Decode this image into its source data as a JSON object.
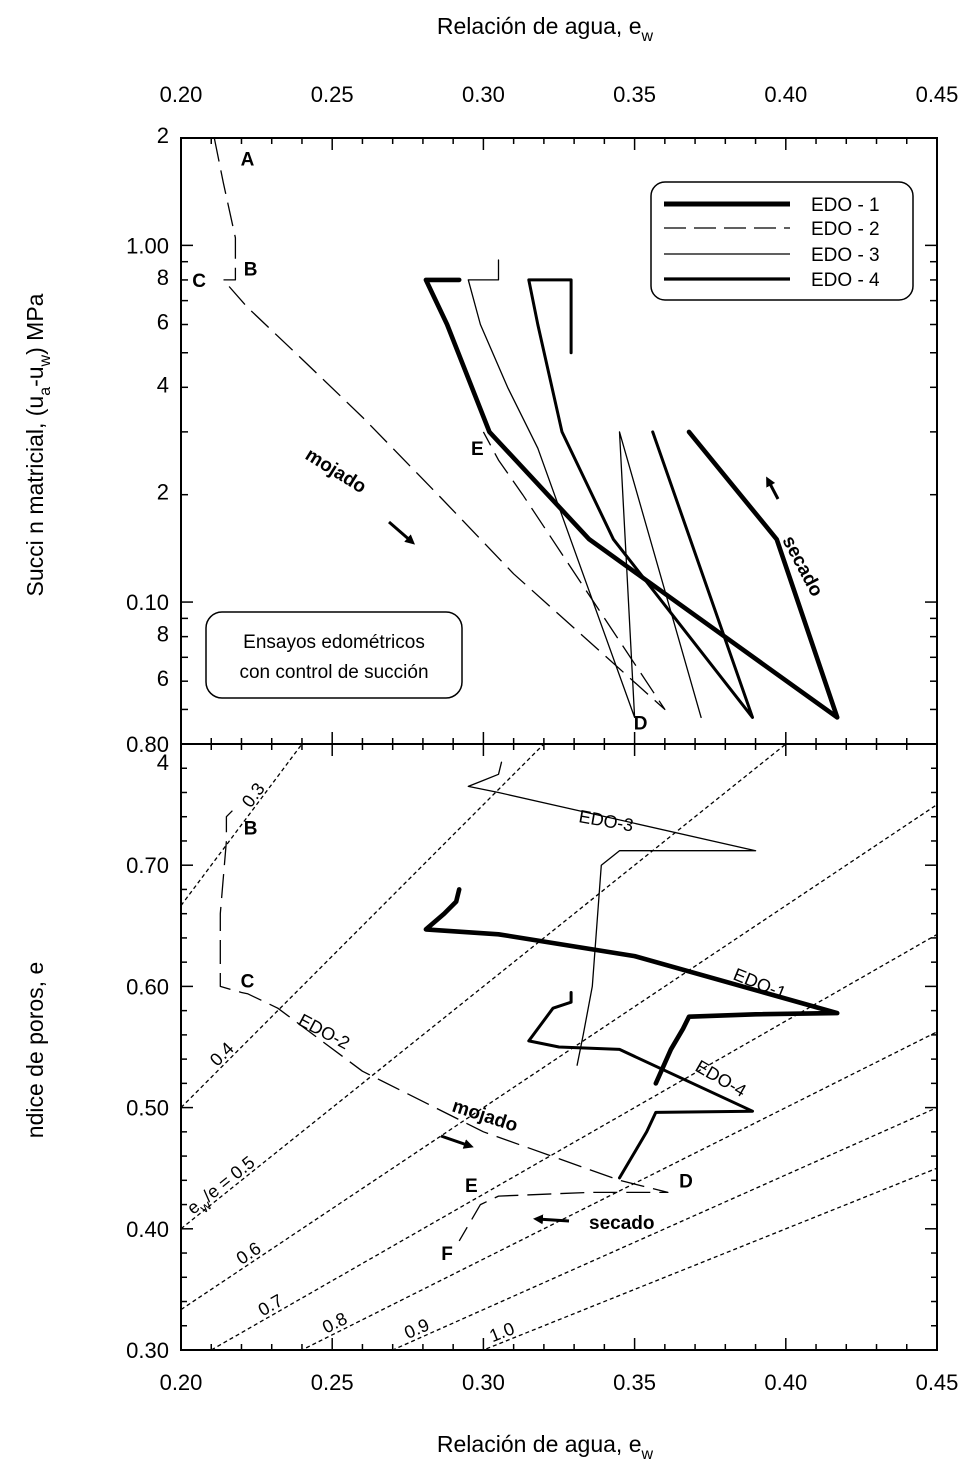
{
  "chart_data": [
    {
      "panel": "top",
      "type": "line",
      "xlabel": "Relación de agua,  e",
      "xlabel_sub": "w",
      "ylabel": "Succi  n matricial,  (u",
      "ylabel_sub_a": "a",
      "ylabel_mid": "-u",
      "ylabel_sub_w": "w",
      "ylabel_end": ")  MPa",
      "y_scale": "log",
      "xlim": [
        0.2,
        0.45
      ],
      "ylim": [
        0.04,
        2.0
      ],
      "x_ticks": [
        0.2,
        0.25,
        0.3,
        0.35,
        0.4,
        0.45
      ],
      "x_tick_labels": [
        "0.20",
        "0.25",
        "0.30",
        "0.35",
        "0.40",
        "0.45"
      ],
      "y_tick_labels": [
        {
          "v": 2.0,
          "t": "2"
        },
        {
          "v": 1.0,
          "t": "1.00"
        },
        {
          "v": 0.8,
          "t": "8"
        },
        {
          "v": 0.6,
          "t": "6"
        },
        {
          "v": 0.4,
          "t": "4"
        },
        {
          "v": 0.2,
          "t": "2"
        },
        {
          "v": 0.1,
          "t": "0.10"
        },
        {
          "v": 0.08,
          "t": "8"
        },
        {
          "v": 0.06,
          "t": "6"
        }
      ],
      "legend": {
        "placement": "top-right",
        "entries": [
          {
            "name": "EDO - 1",
            "style": "thick"
          },
          {
            "name": "EDO - 2",
            "style": "dashed"
          },
          {
            "name": "EDO - 3",
            "style": "thin"
          },
          {
            "name": "EDO - 4",
            "style": "medium"
          }
        ]
      },
      "note": [
        "Ensayos edométricos",
        "con control de succión"
      ],
      "series": [
        {
          "name": "EDO - 2",
          "style": "dashed",
          "points": [
            [
              0.211,
              2.0
            ],
            [
              0.214,
              1.5
            ],
            [
              0.218,
              1.05
            ],
            [
              0.218,
              0.8
            ],
            [
              0.214,
              0.8
            ],
            [
              0.222,
              0.67
            ],
            [
              0.24,
              0.48
            ],
            [
              0.26,
              0.33
            ],
            [
              0.285,
              0.2
            ],
            [
              0.31,
              0.12
            ],
            [
              0.36,
              0.05
            ],
            [
              0.313,
              0.2
            ],
            [
              0.305,
              0.25
            ],
            [
              0.3,
              0.3
            ]
          ]
        },
        {
          "name": "EDO - 3",
          "style": "thin",
          "points": [
            [
              0.305,
              0.91
            ],
            [
              0.305,
              0.8
            ],
            [
              0.295,
              0.8
            ],
            [
              0.299,
              0.6
            ],
            [
              0.308,
              0.4
            ],
            [
              0.318,
              0.27
            ],
            [
              0.35,
              0.0475
            ],
            [
              0.345,
              0.3
            ],
            [
              0.372,
              0.0475
            ]
          ]
        },
        {
          "name": "EDO - 1",
          "style": "thick",
          "points": [
            [
              0.292,
              0.8
            ],
            [
              0.281,
              0.8
            ],
            [
              0.288,
              0.6
            ],
            [
              0.302,
              0.3
            ],
            [
              0.335,
              0.15
            ],
            [
              0.417,
              0.0475
            ],
            [
              0.397,
              0.15
            ],
            [
              0.368,
              0.3
            ]
          ]
        },
        {
          "name": "EDO - 4",
          "style": "medium",
          "points": [
            [
              0.329,
              0.5
            ],
            [
              0.329,
              0.8
            ],
            [
              0.315,
              0.8
            ],
            [
              0.318,
              0.6
            ],
            [
              0.326,
              0.3
            ],
            [
              0.343,
              0.15
            ],
            [
              0.389,
              0.0475
            ],
            [
              0.356,
              0.3
            ]
          ]
        }
      ],
      "annotations": [
        {
          "text": "A",
          "x": 0.222,
          "y": 1.75
        },
        {
          "text": "B",
          "x": 0.223,
          "y": 0.86
        },
        {
          "text": "C",
          "x": 0.206,
          "y": 0.8
        },
        {
          "text": "D",
          "x": 0.352,
          "y": 0.046
        },
        {
          "text": "E",
          "x": 0.298,
          "y": 0.27
        },
        {
          "text": "mojado"
        },
        {
          "text": "secado"
        }
      ]
    },
    {
      "panel": "bottom",
      "type": "line",
      "xlabel": "Relación de agua,  e",
      "xlabel_sub": "w",
      "ylabel": "ndice de poros, e",
      "xlim": [
        0.2,
        0.45
      ],
      "ylim": [
        0.3,
        0.8
      ],
      "x_ticks": [
        0.2,
        0.25,
        0.3,
        0.35,
        0.4,
        0.45
      ],
      "x_tick_labels": [
        "0.20",
        "0.25",
        "0.30",
        "0.35",
        "0.40",
        "0.45"
      ],
      "y_ticks": [
        0.3,
        0.4,
        0.5,
        0.6,
        0.7,
        0.8
      ],
      "y_tick_labels": [
        "0.30",
        "0.40",
        "0.50",
        "0.60",
        "0.70",
        "0.80"
      ],
      "contour_lines": [
        {
          "ratio": 0.3,
          "label": "0.3"
        },
        {
          "ratio": 0.4,
          "label": "0.4"
        },
        {
          "ratio": 0.5,
          "label": "e",
          "label_sub": "w",
          "label_end": "/e = 0.5"
        },
        {
          "ratio": 0.6,
          "label": "0.6"
        },
        {
          "ratio": 0.7,
          "label": "0.7"
        },
        {
          "ratio": 0.8,
          "label": "0.8"
        },
        {
          "ratio": 0.9,
          "label": "0.9"
        },
        {
          "ratio": 1.0,
          "label": "1.0"
        }
      ],
      "series": [
        {
          "name": "EDO-2",
          "style": "dashed",
          "points": [
            [
              0.217,
              0.745
            ],
            [
              0.215,
              0.74
            ],
            [
              0.215,
              0.72
            ],
            [
              0.213,
              0.66
            ],
            [
              0.213,
              0.6
            ],
            [
              0.22,
              0.595
            ],
            [
              0.222,
              0.594
            ],
            [
              0.232,
              0.582
            ],
            [
              0.26,
              0.53
            ],
            [
              0.3,
              0.48
            ],
            [
              0.345,
              0.44
            ],
            [
              0.361,
              0.43
            ],
            [
              0.335,
              0.43
            ],
            [
              0.305,
              0.427
            ],
            [
              0.299,
              0.42
            ],
            [
              0.292,
              0.39
            ]
          ]
        },
        {
          "name": "EDO-3",
          "style": "thin",
          "points": [
            [
              0.306,
              0.785
            ],
            [
              0.305,
              0.775
            ],
            [
              0.3,
              0.77
            ],
            [
              0.295,
              0.765
            ],
            [
              0.305,
              0.76
            ],
            [
              0.39,
              0.712
            ],
            [
              0.345,
              0.712
            ],
            [
              0.339,
              0.7
            ],
            [
              0.336,
              0.6
            ],
            [
              0.333,
              0.56
            ],
            [
              0.331,
              0.535
            ]
          ]
        },
        {
          "name": "EDO-1",
          "style": "thick",
          "points": [
            [
              0.292,
              0.68
            ],
            [
              0.291,
              0.67
            ],
            [
              0.287,
              0.66
            ],
            [
              0.281,
              0.647
            ],
            [
              0.305,
              0.643
            ],
            [
              0.35,
              0.625
            ],
            [
              0.417,
              0.578
            ],
            [
              0.39,
              0.577
            ],
            [
              0.368,
              0.575
            ],
            [
              0.366,
              0.565
            ],
            [
              0.362,
              0.548
            ],
            [
              0.357,
              0.52
            ]
          ]
        },
        {
          "name": "EDO-4",
          "style": "medium",
          "points": [
            [
              0.329,
              0.595
            ],
            [
              0.329,
              0.587
            ],
            [
              0.323,
              0.582
            ],
            [
              0.315,
              0.555
            ],
            [
              0.325,
              0.55
            ],
            [
              0.345,
              0.548
            ],
            [
              0.389,
              0.497
            ],
            [
              0.357,
              0.496
            ],
            [
              0.354,
              0.48
            ],
            [
              0.345,
              0.442
            ]
          ]
        }
      ],
      "series_labels": [
        "EDO-3",
        "EDO-1",
        "EDO-2",
        "EDO-4"
      ],
      "annotations": [
        {
          "text": "B",
          "x": 0.223,
          "y": 0.731
        },
        {
          "text": "C",
          "x": 0.222,
          "y": 0.605
        },
        {
          "text": "D",
          "x": 0.367,
          "y": 0.44
        },
        {
          "text": "E",
          "x": 0.296,
          "y": 0.436
        },
        {
          "text": "F",
          "x": 0.288,
          "y": 0.38
        },
        {
          "text": "mojado"
        },
        {
          "text": "secado"
        }
      ]
    }
  ]
}
